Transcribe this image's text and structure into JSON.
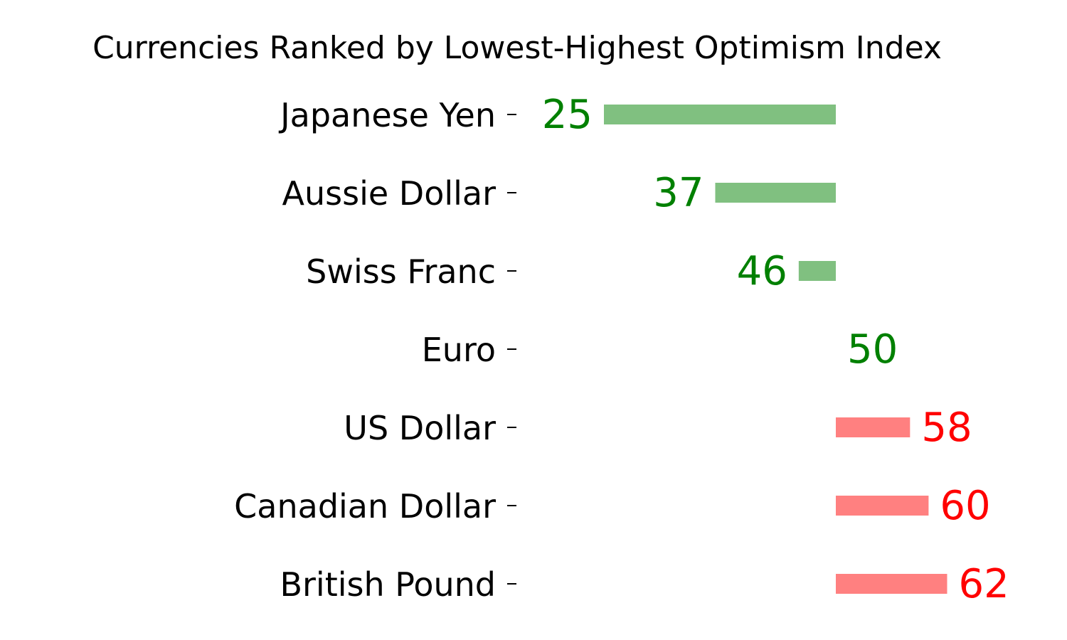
{
  "chart_data": {
    "type": "bar",
    "orientation": "horizontal",
    "title": "Currencies Ranked by Lowest-Highest Optimism Index",
    "xlabel": "",
    "ylabel": "",
    "baseline": 50,
    "xlim": [
      25,
      62
    ],
    "categories": [
      "Japanese Yen",
      "Aussie Dollar",
      "Swiss Franc",
      "Euro",
      "US Dollar",
      "Canadian Dollar",
      "British Pound"
    ],
    "values": [
      25,
      37,
      46,
      50,
      58,
      60,
      62
    ],
    "value_labels": [
      "25",
      "37",
      "46",
      "50",
      "58",
      "60",
      "62"
    ],
    "colors": {
      "below_baseline_bar": "#80c080",
      "below_baseline_text": "#008000",
      "above_baseline_bar": "#ff8080",
      "above_baseline_text": "#ff0000"
    },
    "grid": false,
    "legend": "none"
  }
}
